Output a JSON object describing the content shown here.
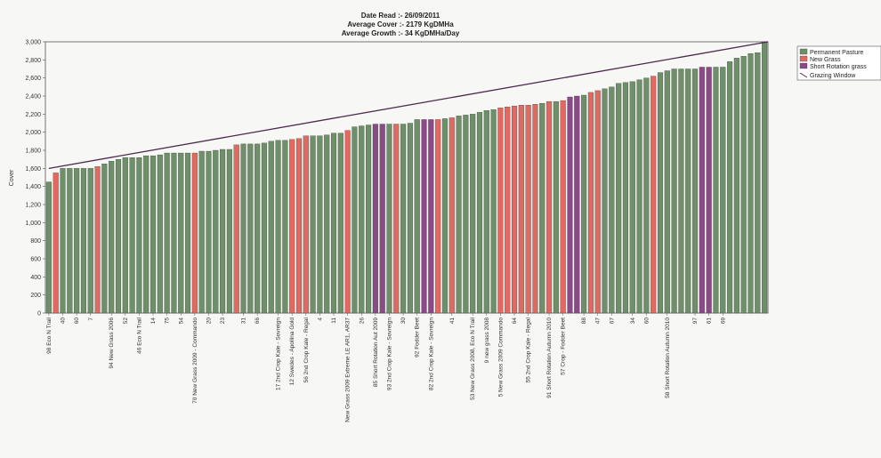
{
  "header": {
    "date_read": "Date Read :- 26/09/2011",
    "avg_cover": "Average Cover :- 2179 KgDMHa",
    "avg_growth": "Average Growth :- 34 KgDMHa/Day"
  },
  "colors": {
    "permanent": "#6f8f6a",
    "new_grass": "#e06a62",
    "short_rotation": "#8a4a86",
    "grazing_window": "#4a2a4a",
    "axis": "#555555",
    "background": "#f7f7f5"
  },
  "chart_data": {
    "type": "bar",
    "ylabel": "Cover",
    "xlabel": "",
    "ylim": [
      0,
      3000
    ],
    "y_ticks": [
      "0",
      "200",
      "400",
      "600",
      "800",
      "1,000",
      "1,200",
      "1,400",
      "1,600",
      "1,800",
      "2,000",
      "2,200",
      "2,400",
      "2,600",
      "2,800",
      "3,000"
    ],
    "legend_position": "top-right",
    "legend": [
      {
        "name": "Permanent Pasture",
        "key": "permanent"
      },
      {
        "name": "New Grass",
        "key": "new_grass"
      },
      {
        "name": "Short Rotation grass",
        "key": "short_rotation"
      },
      {
        "name": "Grazing Window",
        "key": "line"
      }
    ],
    "series": [
      {
        "name": "Permanent Pasture"
      },
      {
        "name": "New Grass"
      },
      {
        "name": "Short Rotation grass"
      }
    ],
    "grazing_window": {
      "start": 1600,
      "end": 3000
    },
    "values": [
      1450,
      1550,
      1600,
      1600,
      1600,
      1600,
      1600,
      1620,
      1650,
      1680,
      1700,
      1720,
      1720,
      1720,
      1740,
      1740,
      1750,
      1770,
      1770,
      1770,
      1770,
      1770,
      1790,
      1790,
      1800,
      1810,
      1810,
      1860,
      1870,
      1870,
      1870,
      1880,
      1900,
      1910,
      1910,
      1920,
      1930,
      1960,
      1960,
      1960,
      1970,
      1990,
      1990,
      2020,
      2060,
      2070,
      2080,
      2090,
      2090,
      2090,
      2090,
      2090,
      2100,
      2140,
      2140,
      2140,
      2140,
      2150,
      2160,
      2180,
      2190,
      2200,
      2220,
      2240,
      2250,
      2270,
      2280,
      2290,
      2300,
      2300,
      2310,
      2320,
      2340,
      2340,
      2350,
      2390,
      2400,
      2410,
      2440,
      2460,
      2480,
      2500,
      2540,
      2550,
      2560,
      2580,
      2600,
      2620,
      2660,
      2680,
      2700,
      2700,
      2700,
      2700,
      2720,
      2720,
      2720,
      2720,
      2780,
      2820,
      2840,
      2870,
      2880,
      3000
    ],
    "colors": [
      "p",
      "n",
      "p",
      "p",
      "p",
      "p",
      "p",
      "n",
      "p",
      "p",
      "p",
      "p",
      "p",
      "p",
      "p",
      "p",
      "p",
      "p",
      "p",
      "p",
      "p",
      "n",
      "p",
      "p",
      "p",
      "p",
      "p",
      "n",
      "p",
      "p",
      "p",
      "p",
      "p",
      "p",
      "p",
      "n",
      "n",
      "n",
      "p",
      "p",
      "p",
      "p",
      "p",
      "n",
      "p",
      "p",
      "p",
      "s",
      "s",
      "p",
      "n",
      "p",
      "p",
      "p",
      "s",
      "s",
      "n",
      "p",
      "n",
      "p",
      "p",
      "p",
      "p",
      "p",
      "p",
      "n",
      "n",
      "n",
      "n",
      "n",
      "n",
      "p",
      "n",
      "p",
      "n",
      "s",
      "s",
      "p",
      "n",
      "n",
      "p",
      "p",
      "p",
      "p",
      "p",
      "p",
      "p",
      "n",
      "p",
      "p",
      "p",
      "p",
      "p",
      "p",
      "s",
      "s",
      "p",
      "p",
      "p",
      "p",
      "p",
      "p",
      "p",
      "p"
    ],
    "x_tick_labels": [
      {
        "i": 0,
        "label": "98 Eco N Trail"
      },
      {
        "i": 2,
        "label": "40"
      },
      {
        "i": 4,
        "label": "60"
      },
      {
        "i": 6,
        "label": "7"
      },
      {
        "i": 9,
        "label": "94 New Grass 2006"
      },
      {
        "i": 11,
        "label": "52"
      },
      {
        "i": 13,
        "label": "46 Eco N Trail"
      },
      {
        "i": 15,
        "label": "14"
      },
      {
        "i": 17,
        "label": "75"
      },
      {
        "i": 19,
        "label": "54"
      },
      {
        "i": 21,
        "label": "70 New Grass 2009 - Commando"
      },
      {
        "i": 23,
        "label": "20"
      },
      {
        "i": 25,
        "label": "23"
      },
      {
        "i": 28,
        "label": "31"
      },
      {
        "i": 30,
        "label": "66"
      },
      {
        "i": 33,
        "label": "17 2nd Crop Kale - Sovreign"
      },
      {
        "i": 35,
        "label": "12 Swedes - Apollina Gold"
      },
      {
        "i": 37,
        "label": "56 2nd Crop Kale - Regal"
      },
      {
        "i": 39,
        "label": "4"
      },
      {
        "i": 41,
        "label": "11"
      },
      {
        "i": 43,
        "label": "New Grass 2009 Extreme LE AR1, AR37"
      },
      {
        "i": 45,
        "label": "26"
      },
      {
        "i": 47,
        "label": "85 Short Rotation Aut 2009"
      },
      {
        "i": 49,
        "label": "93 2nd Crop Kale - Sovreign"
      },
      {
        "i": 51,
        "label": "30"
      },
      {
        "i": 53,
        "label": "92 Fodder Beet"
      },
      {
        "i": 55,
        "label": "82 2nd Crop Kale - Sovreign"
      },
      {
        "i": 58,
        "label": "41"
      },
      {
        "i": 61,
        "label": "53 New Grass 2008, Eco N Trail"
      },
      {
        "i": 63,
        "label": "9 new grass 2008"
      },
      {
        "i": 65,
        "label": "5 New Grass 2009 Commando"
      },
      {
        "i": 67,
        "label": "64"
      },
      {
        "i": 69,
        "label": "55 2nd Crop Kale - Regal"
      },
      {
        "i": 72,
        "label": "91 Short Rotation Autumn 2010"
      },
      {
        "i": 74,
        "label": "57 Crop - Fodder Beet"
      },
      {
        "i": 77,
        "label": "88"
      },
      {
        "i": 79,
        "label": "47"
      },
      {
        "i": 81,
        "label": "67"
      },
      {
        "i": 84,
        "label": "34"
      },
      {
        "i": 86,
        "label": "60"
      },
      {
        "i": 89,
        "label": "58 Short Rotation Autumn 2010"
      },
      {
        "i": 93,
        "label": "97"
      },
      {
        "i": 95,
        "label": "61"
      },
      {
        "i": 97,
        "label": "69"
      }
    ]
  }
}
